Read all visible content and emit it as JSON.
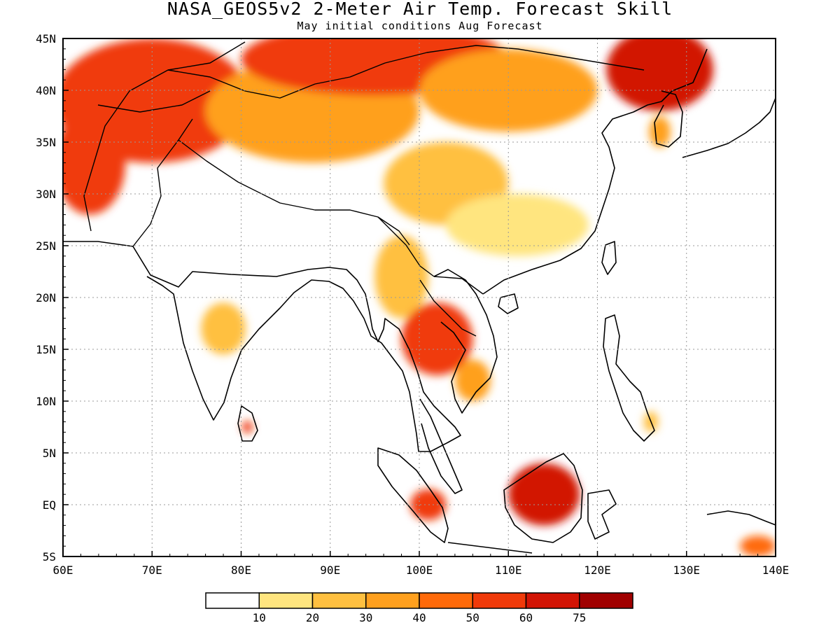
{
  "title": "NASA_GEOS5v2 2-Meter Air Temp. Forecast Skill",
  "subtitle": "May initial conditions  Aug Forecast",
  "map": {
    "lon_range": [
      60,
      140
    ],
    "lat_range": [
      -5,
      45
    ],
    "lon_ticks": [
      {
        "value": 60,
        "label": "60E"
      },
      {
        "value": 70,
        "label": "70E"
      },
      {
        "value": 80,
        "label": "80E"
      },
      {
        "value": 90,
        "label": "90E"
      },
      {
        "value": 100,
        "label": "100E"
      },
      {
        "value": 110,
        "label": "110E"
      },
      {
        "value": 120,
        "label": "120E"
      },
      {
        "value": 130,
        "label": "130E"
      },
      {
        "value": 140,
        "label": "140E"
      }
    ],
    "lat_ticks": [
      {
        "value": -5,
        "label": "5S"
      },
      {
        "value": 0,
        "label": "EQ"
      },
      {
        "value": 5,
        "label": "5N"
      },
      {
        "value": 10,
        "label": "10N"
      },
      {
        "value": 15,
        "label": "15N"
      },
      {
        "value": 20,
        "label": "20N"
      },
      {
        "value": 25,
        "label": "25N"
      },
      {
        "value": 30,
        "label": "30N"
      },
      {
        "value": 35,
        "label": "35N"
      },
      {
        "value": 40,
        "label": "40N"
      },
      {
        "value": 45,
        "label": "45N"
      }
    ],
    "gridlines": "dotted",
    "colorbar": {
      "colors": [
        "#ffffff",
        "#ffe57f",
        "#ffc040",
        "#ffa01e",
        "#ff6a0a",
        "#f03a0a",
        "#d21405",
        "#a00000"
      ],
      "labels": [
        "10",
        "20",
        "30",
        "40",
        "50",
        "60",
        "75"
      ]
    },
    "regions": [
      {
        "name": "central-asia",
        "lon": 70,
        "lat": 39,
        "rx": 11,
        "ry": 6,
        "level": 5
      },
      {
        "name": "iran",
        "lon": 63,
        "lat": 33,
        "rx": 4,
        "ry": 5,
        "level": 5
      },
      {
        "name": "tibet-north",
        "lon": 88,
        "lat": 38,
        "rx": 12,
        "ry": 5,
        "level": 3
      },
      {
        "name": "mongolia",
        "lon": 95,
        "lat": 43,
        "rx": 15,
        "ry": 3.5,
        "level": 5
      },
      {
        "name": "northern-china",
        "lon": 110,
        "lat": 40,
        "rx": 10,
        "ry": 4,
        "level": 3
      },
      {
        "name": "manchuria",
        "lon": 127,
        "lat": 42,
        "rx": 6,
        "ry": 4,
        "level": 6
      },
      {
        "name": "sichuan",
        "lon": 103,
        "lat": 31,
        "rx": 7,
        "ry": 4,
        "level": 2
      },
      {
        "name": "southern-china",
        "lon": 111,
        "lat": 27,
        "rx": 8,
        "ry": 3,
        "level": 1
      },
      {
        "name": "myanmar",
        "lon": 98,
        "lat": 22,
        "rx": 3,
        "ry": 4,
        "level": 2
      },
      {
        "name": "thailand-laos",
        "lon": 102,
        "lat": 16,
        "rx": 4,
        "ry": 3.5,
        "level": 5
      },
      {
        "name": "vietnam-south",
        "lon": 106,
        "lat": 12,
        "rx": 2,
        "ry": 2,
        "level": 3
      },
      {
        "name": "central-india",
        "lon": 78,
        "lat": 17,
        "rx": 2.5,
        "ry": 2.5,
        "level": 2
      },
      {
        "name": "borneo",
        "lon": 114,
        "lat": 1,
        "rx": 4,
        "ry": 3,
        "level": 6
      },
      {
        "name": "sumatra",
        "lon": 101,
        "lat": 0,
        "rx": 2,
        "ry": 1.5,
        "level": 5
      },
      {
        "name": "new-guinea",
        "lon": 138,
        "lat": -4,
        "rx": 2,
        "ry": 1,
        "level": 4
      },
      {
        "name": "sri-lanka",
        "lon": 80.7,
        "lat": 7.5,
        "rx": 0.6,
        "ry": 0.6,
        "level": 5
      },
      {
        "name": "korea",
        "lon": 127,
        "lat": 36,
        "rx": 1.2,
        "ry": 1.5,
        "level": 3
      },
      {
        "name": "philippines",
        "lon": 126,
        "lat": 8,
        "rx": 0.8,
        "ry": 1,
        "level": 2
      }
    ]
  }
}
